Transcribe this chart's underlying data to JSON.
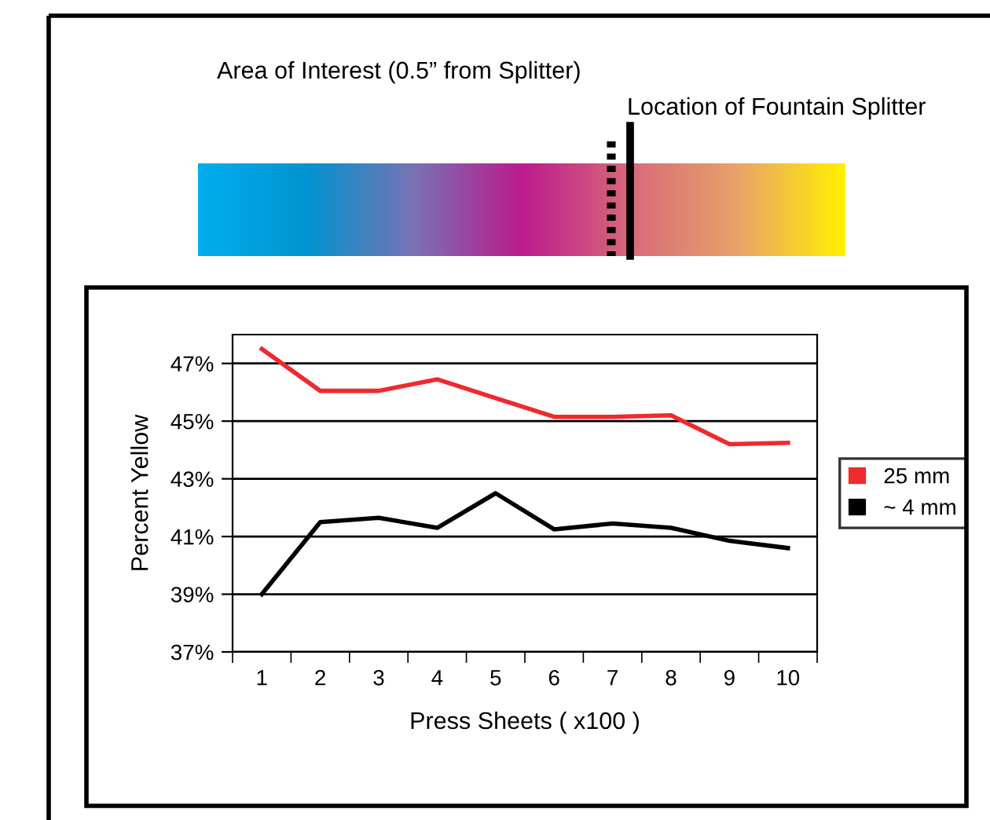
{
  "chart_data": {
    "type": "line",
    "xlabel": "Press Sheets ( x100 )",
    "ylabel": "Percent Yellow",
    "categories": [
      "1",
      "2",
      "3",
      "4",
      "5",
      "6",
      "7",
      "8",
      "9",
      "10"
    ],
    "series": [
      {
        "name": "25 mm",
        "color": "#ee2a2e",
        "values": [
          47.5,
          46.05,
          46.05,
          46.45,
          45.8,
          45.15,
          45.15,
          45.2,
          44.2,
          44.25
        ]
      },
      {
        "name": "~ 4 mm",
        "color": "#000000",
        "values": [
          39.0,
          41.5,
          41.65,
          41.3,
          42.5,
          41.25,
          41.45,
          41.3,
          40.85,
          40.6
        ]
      }
    ],
    "ylim": [
      37,
      48
    ],
    "yticks": [
      {
        "value": 37,
        "label": "37%"
      },
      {
        "value": 39,
        "label": "39%"
      },
      {
        "value": 41,
        "label": "41%"
      },
      {
        "value": 43,
        "label": "43%"
      },
      {
        "value": 45,
        "label": "45%"
      },
      {
        "value": 47,
        "label": "47%"
      }
    ],
    "grid": "y",
    "legend": "right",
    "marker": "none",
    "line_style": "solid",
    "annotations": [
      "Area of Interest (0.5” from Splitter)",
      "Location of Fountain Splitter"
    ]
  }
}
